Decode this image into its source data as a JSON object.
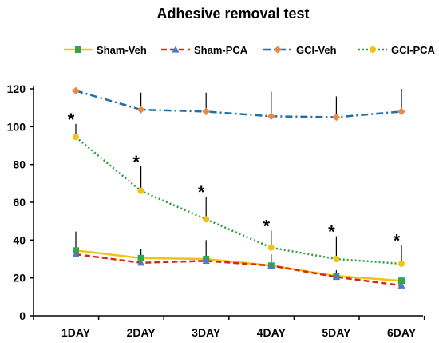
{
  "chart_data": {
    "type": "line",
    "title": "Adhesive removal test",
    "xlabel": "",
    "ylabel": "",
    "categories": [
      "1DAY",
      "2DAY",
      "3DAY",
      "4DAY",
      "5DAY",
      "6DAY"
    ],
    "ylim": [
      0,
      120
    ],
    "yticks": [
      0,
      20,
      40,
      60,
      80,
      100,
      120
    ],
    "grid": false,
    "legend_position": "top",
    "series": [
      {
        "name": "Sham-Veh",
        "values": [
          34.5,
          30.5,
          30,
          26.5,
          21,
          18.5
        ],
        "error": [
          10,
          5,
          10,
          6,
          3,
          2
        ],
        "color": "#F2C314",
        "marker": "square",
        "marker_color": "#2DA84A",
        "line_style": "solid"
      },
      {
        "name": "Sham-PCA",
        "values": [
          32.5,
          28,
          29,
          26.5,
          20.5,
          16
        ],
        "error": [
          3,
          2,
          2,
          2,
          2,
          2
        ],
        "color": "#D9261C",
        "marker": "triangle",
        "marker_color": "#4A7BC8",
        "line_style": "dashed"
      },
      {
        "name": "GCI-Veh",
        "values": [
          119,
          109,
          108,
          105.5,
          105,
          108
        ],
        "error": [
          0,
          9,
          10,
          13,
          11,
          12
        ],
        "color": "#1F6FA8",
        "marker": "diamond",
        "marker_color": "#E8894A",
        "line_style": "dashdot"
      },
      {
        "name": "GCI-PCA",
        "values": [
          94.5,
          66,
          51,
          36,
          30,
          27.5
        ],
        "error": [
          7,
          13,
          12,
          9,
          12,
          10
        ],
        "color": "#2E9E3E",
        "marker": "circle",
        "marker_color": "#F2C314",
        "line_style": "dotted"
      }
    ],
    "annotations": [
      {
        "category": "1DAY",
        "text": "*"
      },
      {
        "category": "2DAY",
        "text": "*"
      },
      {
        "category": "3DAY",
        "text": "*"
      },
      {
        "category": "4DAY",
        "text": "*"
      },
      {
        "category": "5DAY",
        "text": "*"
      },
      {
        "category": "6DAY",
        "text": "*"
      }
    ]
  }
}
